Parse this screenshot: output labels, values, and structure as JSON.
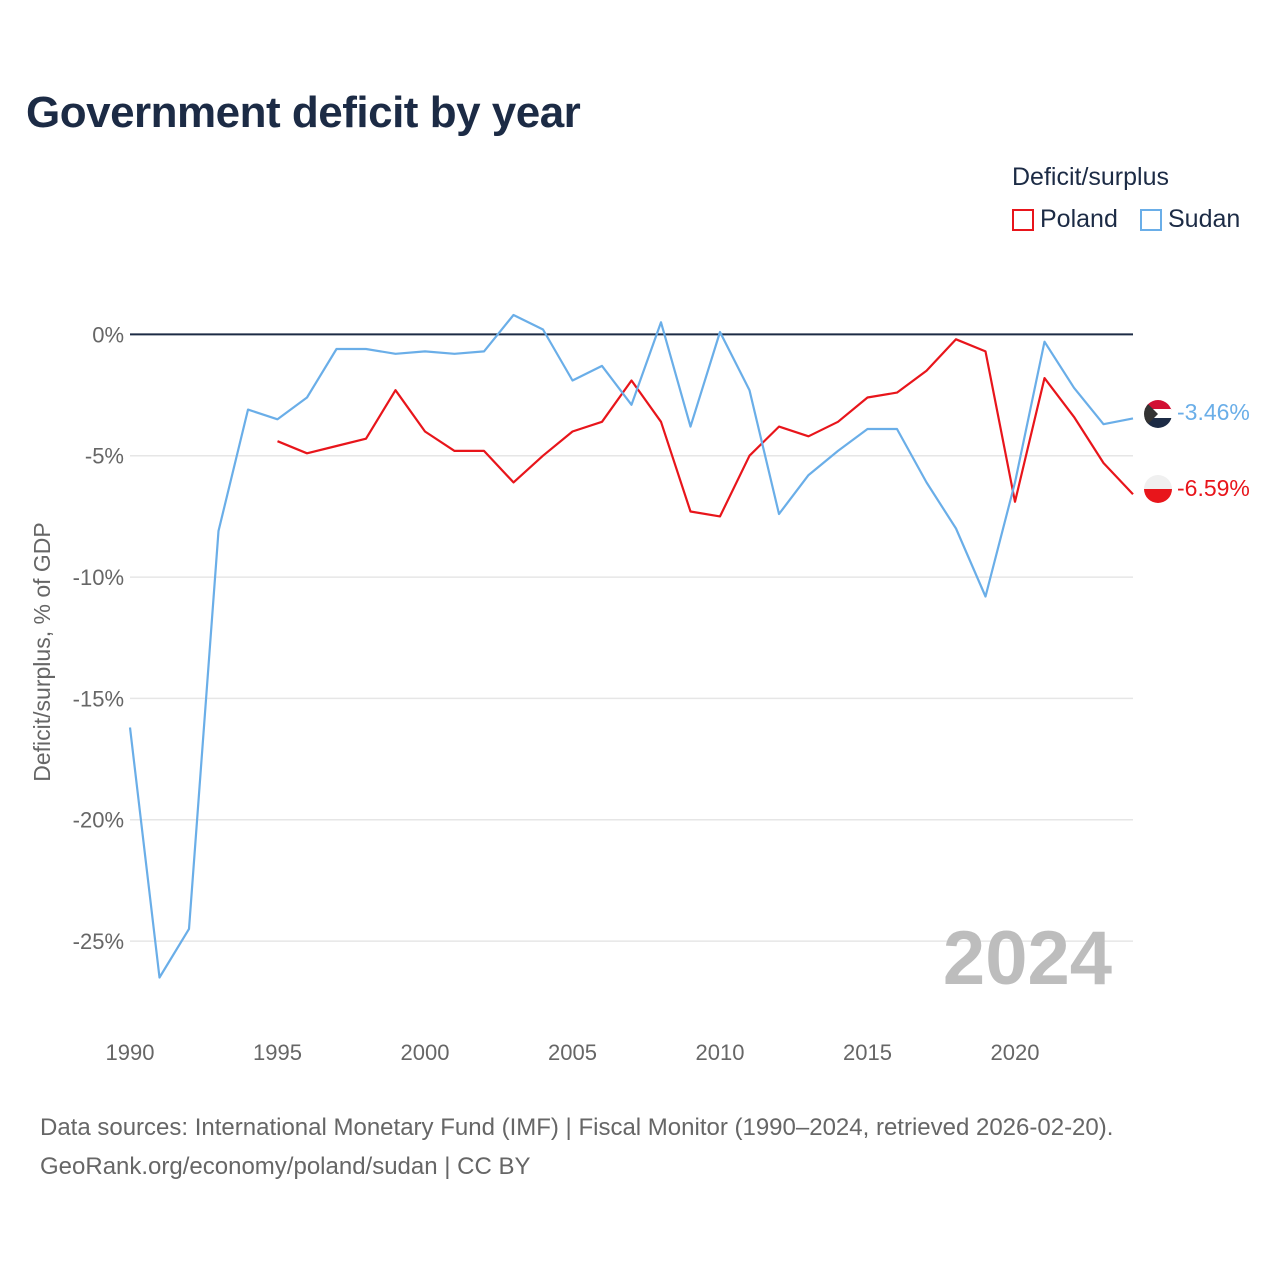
{
  "chart_data": {
    "type": "line",
    "title": "Government deficit by year",
    "legend_title": "Deficit/surplus",
    "ylabel": "Deficit/surplus, % of GDP",
    "xlabel": "",
    "xlim": [
      1990,
      2024
    ],
    "ylim": [
      -28.5,
      1.5
    ],
    "x_ticks": [
      1990,
      1995,
      2000,
      2005,
      2010,
      2015,
      2020
    ],
    "x_tick_labels": [
      "1990",
      "1995",
      "2000",
      "2005",
      "2010",
      "2015",
      "2020"
    ],
    "y_ticks": [
      0,
      -5,
      -10,
      -15,
      -20,
      -25
    ],
    "y_tick_labels": [
      "0%",
      "-5%",
      "-10%",
      "-15%",
      "-20%",
      "-25%"
    ],
    "year_watermark": "2024",
    "series": [
      {
        "name": "Poland",
        "color": "#e8151b",
        "end_label": "-6.59%",
        "x": [
          1995,
          1996,
          1997,
          1998,
          1999,
          2000,
          2001,
          2002,
          2003,
          2004,
          2005,
          2006,
          2007,
          2008,
          2009,
          2010,
          2011,
          2012,
          2013,
          2014,
          2015,
          2016,
          2017,
          2018,
          2019,
          2020,
          2021,
          2022,
          2023,
          2024
        ],
        "values": [
          -4.4,
          -4.9,
          -4.6,
          -4.3,
          -2.3,
          -4.0,
          -4.8,
          -4.8,
          -6.1,
          -5.0,
          -4.0,
          -3.6,
          -1.9,
          -3.6,
          -7.3,
          -7.5,
          -5.0,
          -3.8,
          -4.2,
          -3.6,
          -2.6,
          -2.4,
          -1.5,
          -0.2,
          -0.7,
          -6.9,
          -1.8,
          -3.4,
          -5.3,
          -6.59
        ]
      },
      {
        "name": "Sudan",
        "color": "#6aaee8",
        "end_label": "-3.46%",
        "x": [
          1990,
          1991,
          1992,
          1993,
          1994,
          1995,
          1996,
          1997,
          1998,
          1999,
          2000,
          2001,
          2002,
          2003,
          2004,
          2005,
          2006,
          2007,
          2008,
          2009,
          2010,
          2011,
          2012,
          2013,
          2014,
          2015,
          2016,
          2017,
          2018,
          2019,
          2020,
          2021,
          2022,
          2023,
          2024
        ],
        "values": [
          -16.2,
          -26.5,
          -24.5,
          -8.1,
          -3.1,
          -3.5,
          -2.6,
          -0.6,
          -0.6,
          -0.8,
          -0.7,
          -0.8,
          -0.7,
          0.8,
          0.2,
          -1.9,
          -1.3,
          -2.9,
          0.5,
          -3.8,
          0.1,
          -2.3,
          -7.4,
          -5.8,
          -4.8,
          -3.9,
          -3.9,
          -6.1,
          -8.0,
          -10.8,
          -6.1,
          -0.3,
          -2.2,
          -3.7,
          -3.46
        ]
      }
    ]
  },
  "footer": {
    "source_line": "Data sources: International Monetary Fund (IMF) | Fiscal Monitor (1990–2024, retrieved 2026-02-20).",
    "credit_line": "GeoRank.org/economy/poland/sudan | CC BY"
  }
}
